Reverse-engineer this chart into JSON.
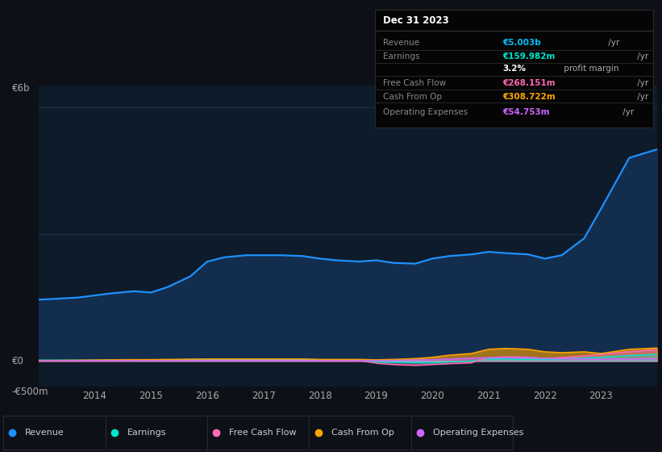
{
  "background_color": "#0d1117",
  "plot_bg_color": "#0d1b2a",
  "title_box": {
    "date": "Dec 31 2023",
    "rows": [
      {
        "label": "Revenue",
        "value": "€5.003b",
        "unit": " /yr",
        "value_color": "#00bfff"
      },
      {
        "label": "Earnings",
        "value": "€159.982m",
        "unit": " /yr",
        "value_color": "#00e5cc"
      },
      {
        "label": "",
        "value": "3.2%",
        "unit": " profit margin",
        "value_color": "white"
      },
      {
        "label": "Free Cash Flow",
        "value": "€268.151m",
        "unit": " /yr",
        "value_color": "#ff69b4"
      },
      {
        "label": "Cash From Op",
        "value": "€308.722m",
        "unit": " /yr",
        "value_color": "#ffa500"
      },
      {
        "label": "Operating Expenses",
        "value": "€54.753m",
        "unit": " /yr",
        "value_color": "#cc66ff"
      }
    ]
  },
  "ylabel_top": "€6b",
  "ylabel_zero": "€0",
  "ylabel_bottom": "-€500m",
  "years": [
    2013.0,
    2013.3,
    2013.7,
    2014.0,
    2014.3,
    2014.7,
    2015.0,
    2015.3,
    2015.7,
    2016.0,
    2016.3,
    2016.7,
    2017.0,
    2017.3,
    2017.7,
    2018.0,
    2018.3,
    2018.7,
    2019.0,
    2019.3,
    2019.7,
    2020.0,
    2020.3,
    2020.7,
    2021.0,
    2021.3,
    2021.7,
    2022.0,
    2022.3,
    2022.7,
    2023.0,
    2023.5,
    2024.0
  ],
  "revenue": [
    1.45,
    1.47,
    1.5,
    1.55,
    1.6,
    1.65,
    1.62,
    1.75,
    2.0,
    2.35,
    2.45,
    2.5,
    2.5,
    2.5,
    2.48,
    2.42,
    2.38,
    2.35,
    2.38,
    2.32,
    2.3,
    2.42,
    2.48,
    2.52,
    2.58,
    2.55,
    2.52,
    2.42,
    2.5,
    2.9,
    3.6,
    4.8,
    5.003
  ],
  "earnings": [
    0.02,
    0.02,
    0.02,
    0.02,
    0.02,
    0.025,
    0.025,
    0.03,
    0.035,
    0.04,
    0.04,
    0.04,
    0.03,
    0.03,
    0.03,
    0.02,
    0.02,
    0.02,
    -0.02,
    -0.03,
    -0.04,
    -0.04,
    -0.02,
    0.0,
    0.05,
    0.05,
    0.04,
    0.04,
    0.05,
    0.07,
    0.09,
    0.13,
    0.16
  ],
  "free_cash_flow": [
    0.01,
    0.01,
    0.01,
    0.01,
    0.01,
    0.015,
    0.015,
    0.02,
    0.02,
    0.02,
    0.02,
    0.02,
    0.02,
    0.02,
    0.02,
    0.01,
    0.01,
    0.01,
    -0.05,
    -0.08,
    -0.1,
    -0.08,
    -0.06,
    -0.04,
    0.08,
    0.1,
    0.09,
    0.06,
    0.08,
    0.12,
    0.16,
    0.22,
    0.268
  ],
  "cash_from_op": [
    0.015,
    0.015,
    0.02,
    0.025,
    0.03,
    0.035,
    0.035,
    0.04,
    0.045,
    0.05,
    0.05,
    0.05,
    0.05,
    0.05,
    0.05,
    0.04,
    0.04,
    0.04,
    0.03,
    0.04,
    0.06,
    0.09,
    0.14,
    0.18,
    0.28,
    0.3,
    0.28,
    0.22,
    0.2,
    0.22,
    0.18,
    0.28,
    0.309
  ],
  "operating_expenses": [
    0.008,
    0.008,
    0.009,
    0.009,
    0.01,
    0.01,
    0.01,
    0.01,
    0.01,
    0.01,
    0.01,
    0.01,
    0.01,
    0.01,
    0.01,
    0.01,
    0.01,
    0.01,
    0.01,
    0.015,
    0.025,
    0.035,
    0.05,
    0.07,
    0.08,
    0.085,
    0.08,
    0.065,
    0.055,
    0.05,
    0.045,
    0.05,
    0.055
  ],
  "revenue_color": "#1e90ff",
  "earnings_color": "#00e5cc",
  "fcf_color": "#ff69b4",
  "cashop_color": "#ffa500",
  "opex_color": "#cc66ff",
  "xticks": [
    2014,
    2015,
    2016,
    2017,
    2018,
    2019,
    2020,
    2021,
    2022,
    2023
  ],
  "ylim": [
    -0.6,
    6.5
  ],
  "grid_lines": [
    0.0,
    3.0,
    6.0
  ]
}
